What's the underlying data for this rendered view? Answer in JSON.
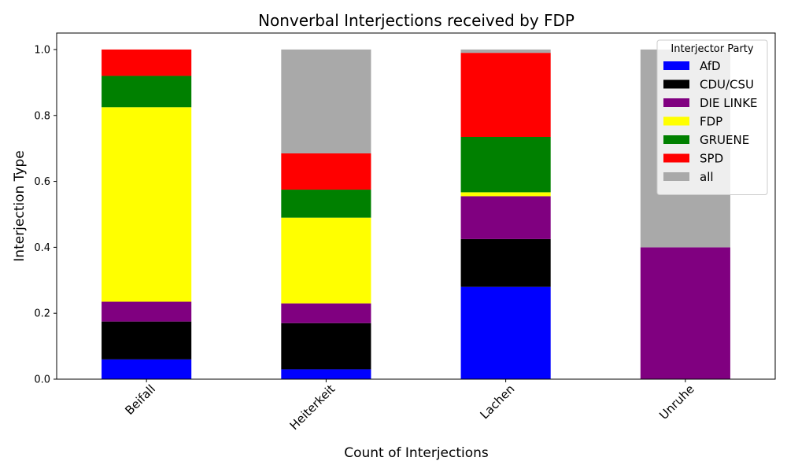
{
  "chart_data": {
    "type": "bar",
    "stacked": true,
    "title": "Nonverbal Interjections received by FDP",
    "xlabel": "Count of Interjections",
    "ylabel": "Interjection Type",
    "categories": [
      "Beifall",
      "Heiterkeit",
      "Lachen",
      "Unruhe"
    ],
    "ylim": [
      0,
      1.05
    ],
    "yticks": [
      0.0,
      0.2,
      0.4,
      0.6,
      0.8,
      1.0
    ],
    "ytick_labels": [
      "0.0",
      "0.2",
      "0.4",
      "0.6",
      "0.8",
      "1.0"
    ],
    "grid": false,
    "legend": {
      "title": "Interjector Party",
      "position": "top-right"
    },
    "series": [
      {
        "name": "AfD",
        "color": "#0000ff",
        "values": [
          0.06,
          0.03,
          0.28,
          0.0
        ]
      },
      {
        "name": "CDU/CSU",
        "color": "#000000",
        "values": [
          0.115,
          0.14,
          0.145,
          0.0
        ]
      },
      {
        "name": "DIE LINKE",
        "color": "#800080",
        "values": [
          0.06,
          0.06,
          0.13,
          0.4
        ]
      },
      {
        "name": "FDP",
        "color": "#ffff00",
        "values": [
          0.59,
          0.26,
          0.012,
          0.0
        ]
      },
      {
        "name": "GRUENE",
        "color": "#008000",
        "values": [
          0.095,
          0.085,
          0.168,
          0.0
        ]
      },
      {
        "name": "SPD",
        "color": "#ff0000",
        "values": [
          0.08,
          0.11,
          0.255,
          0.0
        ]
      },
      {
        "name": "all",
        "color": "#a9a9a9",
        "values": [
          0.0,
          0.315,
          0.01,
          0.6
        ]
      }
    ]
  }
}
